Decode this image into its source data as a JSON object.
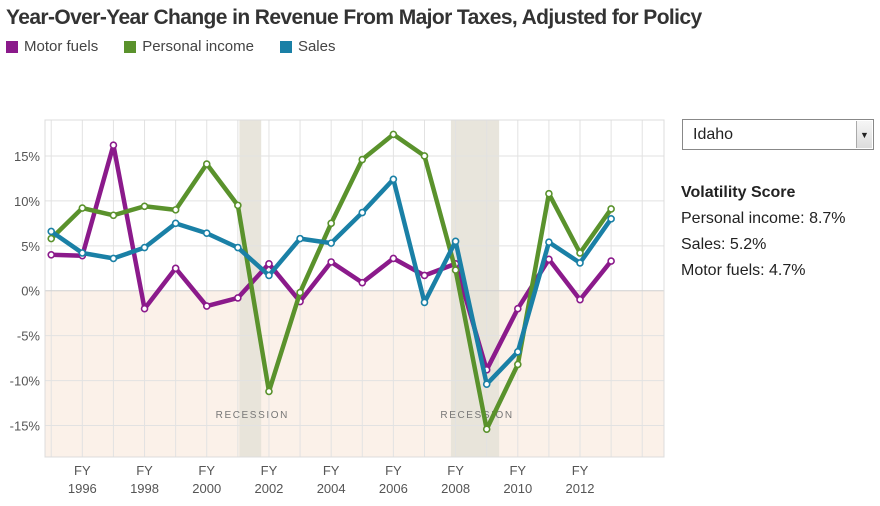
{
  "header": {
    "title": "Year-Over-Year Change in Revenue From Major Taxes, Adjusted for Policy"
  },
  "legend": [
    {
      "label": "Motor fuels",
      "color": "#8b1a8b"
    },
    {
      "label": "Personal income",
      "color": "#5a922c"
    },
    {
      "label": "Sales",
      "color": "#1a80a6"
    }
  ],
  "selector": {
    "selected": "Idaho"
  },
  "volatility": {
    "title": "Volatility Score",
    "items": [
      {
        "label": "Personal income: 8.7%"
      },
      {
        "label": "Sales: 5.2%"
      },
      {
        "label": "Motor fuels: 4.7%"
      }
    ]
  },
  "chart_data": {
    "type": "line",
    "title": "Year-Over-Year Change in Revenue From Major Taxes, Adjusted for Policy",
    "xlabel": "",
    "ylabel": "",
    "x": [
      1995,
      1996,
      1997,
      1998,
      1999,
      2000,
      2001,
      2002,
      2003,
      2004,
      2005,
      2006,
      2007,
      2008,
      2009,
      2010,
      2011,
      2012,
      2013,
      2014
    ],
    "xlim": [
      1994.8,
      2014.7
    ],
    "ylim": [
      -18.5,
      19
    ],
    "x_ticks": [
      {
        "value": 1996,
        "line1": "FY",
        "line2": "1996"
      },
      {
        "value": 1998,
        "line1": "FY",
        "line2": "1998"
      },
      {
        "value": 2000,
        "line1": "FY",
        "line2": "2000"
      },
      {
        "value": 2002,
        "line1": "FY",
        "line2": "2002"
      },
      {
        "value": 2004,
        "line1": "FY",
        "line2": "2004"
      },
      {
        "value": 2006,
        "line1": "FY",
        "line2": "2006"
      },
      {
        "value": 2008,
        "line1": "FY",
        "line2": "2008"
      },
      {
        "value": 2010,
        "line1": "FY",
        "line2": "2010"
      },
      {
        "value": 2012,
        "line1": "FY",
        "line2": "2012"
      }
    ],
    "y_ticks": [
      {
        "value": 15,
        "label": "15%"
      },
      {
        "value": 10,
        "label": "10%"
      },
      {
        "value": 5,
        "label": "5%"
      },
      {
        "value": 0,
        "label": "0%"
      },
      {
        "value": -5,
        "label": "-5%"
      },
      {
        "value": -10,
        "label": "-10%"
      },
      {
        "value": -15,
        "label": "-15%"
      }
    ],
    "recessions": [
      {
        "start": 2001.05,
        "end": 2001.75,
        "label": "RECESSION"
      },
      {
        "start": 2007.85,
        "end": 2009.4,
        "label": "RECESSION"
      }
    ],
    "series": [
      {
        "name": "Motor fuels",
        "color": "#8b1a8b",
        "values": [
          4.0,
          3.9,
          16.2,
          -2.0,
          2.5,
          -1.7,
          -0.8,
          3.0,
          -1.2,
          3.2,
          0.9,
          3.6,
          1.7,
          3.0,
          -8.8,
          -2.0,
          3.5,
          -1.0,
          3.3,
          null
        ]
      },
      {
        "name": "Personal income",
        "color": "#5a922c",
        "values": [
          5.8,
          9.2,
          8.4,
          9.4,
          9.0,
          14.1,
          9.5,
          -11.2,
          -0.2,
          7.5,
          14.6,
          17.4,
          15.0,
          2.3,
          -15.4,
          -8.2,
          10.8,
          4.2,
          9.1,
          null
        ]
      },
      {
        "name": "Sales",
        "color": "#1a80a6",
        "values": [
          6.6,
          4.2,
          3.6,
          4.8,
          7.5,
          6.4,
          4.8,
          1.7,
          5.8,
          5.3,
          8.7,
          12.4,
          -1.3,
          5.5,
          -10.4,
          -6.8,
          5.4,
          3.1,
          8.0,
          null
        ]
      }
    ]
  }
}
